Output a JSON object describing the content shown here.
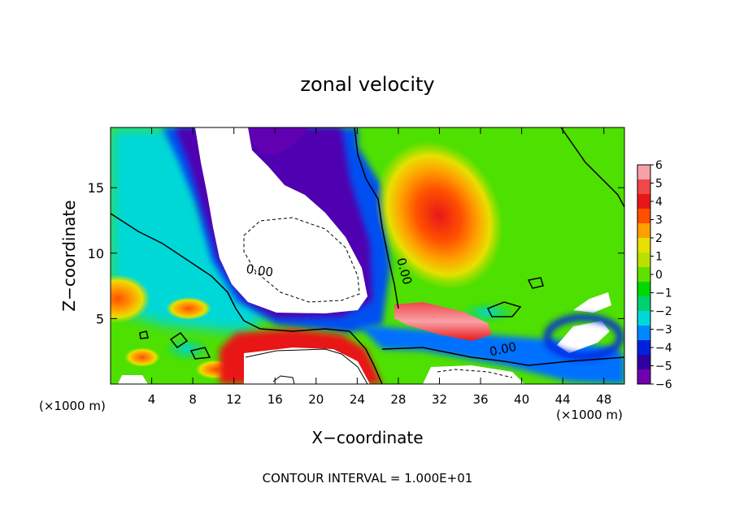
{
  "chart_data": {
    "type": "heatmap",
    "title": "zonal velocity",
    "xlabel": "X−coordinate",
    "ylabel": "Z−coordinate",
    "x_unit_left": "(×1000 m)",
    "x_unit_right": "(×1000 m)",
    "footer": "CONTOUR INTERVAL = 1.000E+01",
    "xlim": [
      0,
      50
    ],
    "ylim": [
      0,
      19.6
    ],
    "x_ticks": [
      4,
      8,
      12,
      16,
      20,
      24,
      28,
      32,
      36,
      40,
      44,
      48
    ],
    "y_ticks": [
      5,
      10,
      15
    ],
    "colorbar": {
      "range": [
        -6,
        6
      ],
      "ticks": [
        "6",
        "5",
        "4",
        "3",
        "2",
        "1",
        "0",
        "−1",
        "−2",
        "−3",
        "−4",
        "−5",
        "−6"
      ],
      "colors": [
        "#f8a0a8",
        "#f04848",
        "#e81818",
        "#ff5000",
        "#ffa000",
        "#e8e000",
        "#b8e000",
        "#60e000",
        "#00d800",
        "#00d070",
        "#00d8d8",
        "#0088ff",
        "#0020e0",
        "#3000a0",
        "#7000b0"
      ]
    },
    "contour_labels": [
      {
        "text": "0.00",
        "x": 14.5,
        "y": 8.6,
        "angle": 8
      },
      {
        "text": "0.00",
        "x": 28.5,
        "y": 8.6,
        "angle": 75
      },
      {
        "text": "0.00",
        "x": 38.2,
        "y": 2.6,
        "angle": -12
      }
    ],
    "regions": [
      {
        "label": "strong westward jet core (< −6, unshaded)",
        "value": -7,
        "x": [
          10,
          26
        ],
        "y": [
          7,
          19.6
        ]
      },
      {
        "label": "eastward maximum near z = 12–13 km",
        "value": 4.5,
        "x": [
          26,
          38
        ],
        "y": [
          9,
          17
        ]
      },
      {
        "label": "eastward maximum at west boundary",
        "value": 3,
        "x": [
          0,
          4
        ],
        "y": [
          5,
          8
        ]
      },
      {
        "label": "near-surface eastward core (> 6, unshaded)",
        "value": 7,
        "x": [
          13,
          25
        ],
        "y": [
          0,
          3
        ]
      },
      {
        "label": "eastward streak near z = 4–5 km",
        "value": 6.5,
        "x": [
          27,
          37
        ],
        "y": [
          4,
          5.5
        ]
      },
      {
        "label": "eastern surface westward region",
        "value": -5,
        "x": [
          42,
          50
        ],
        "y": [
          2,
          5
        ]
      }
    ]
  }
}
